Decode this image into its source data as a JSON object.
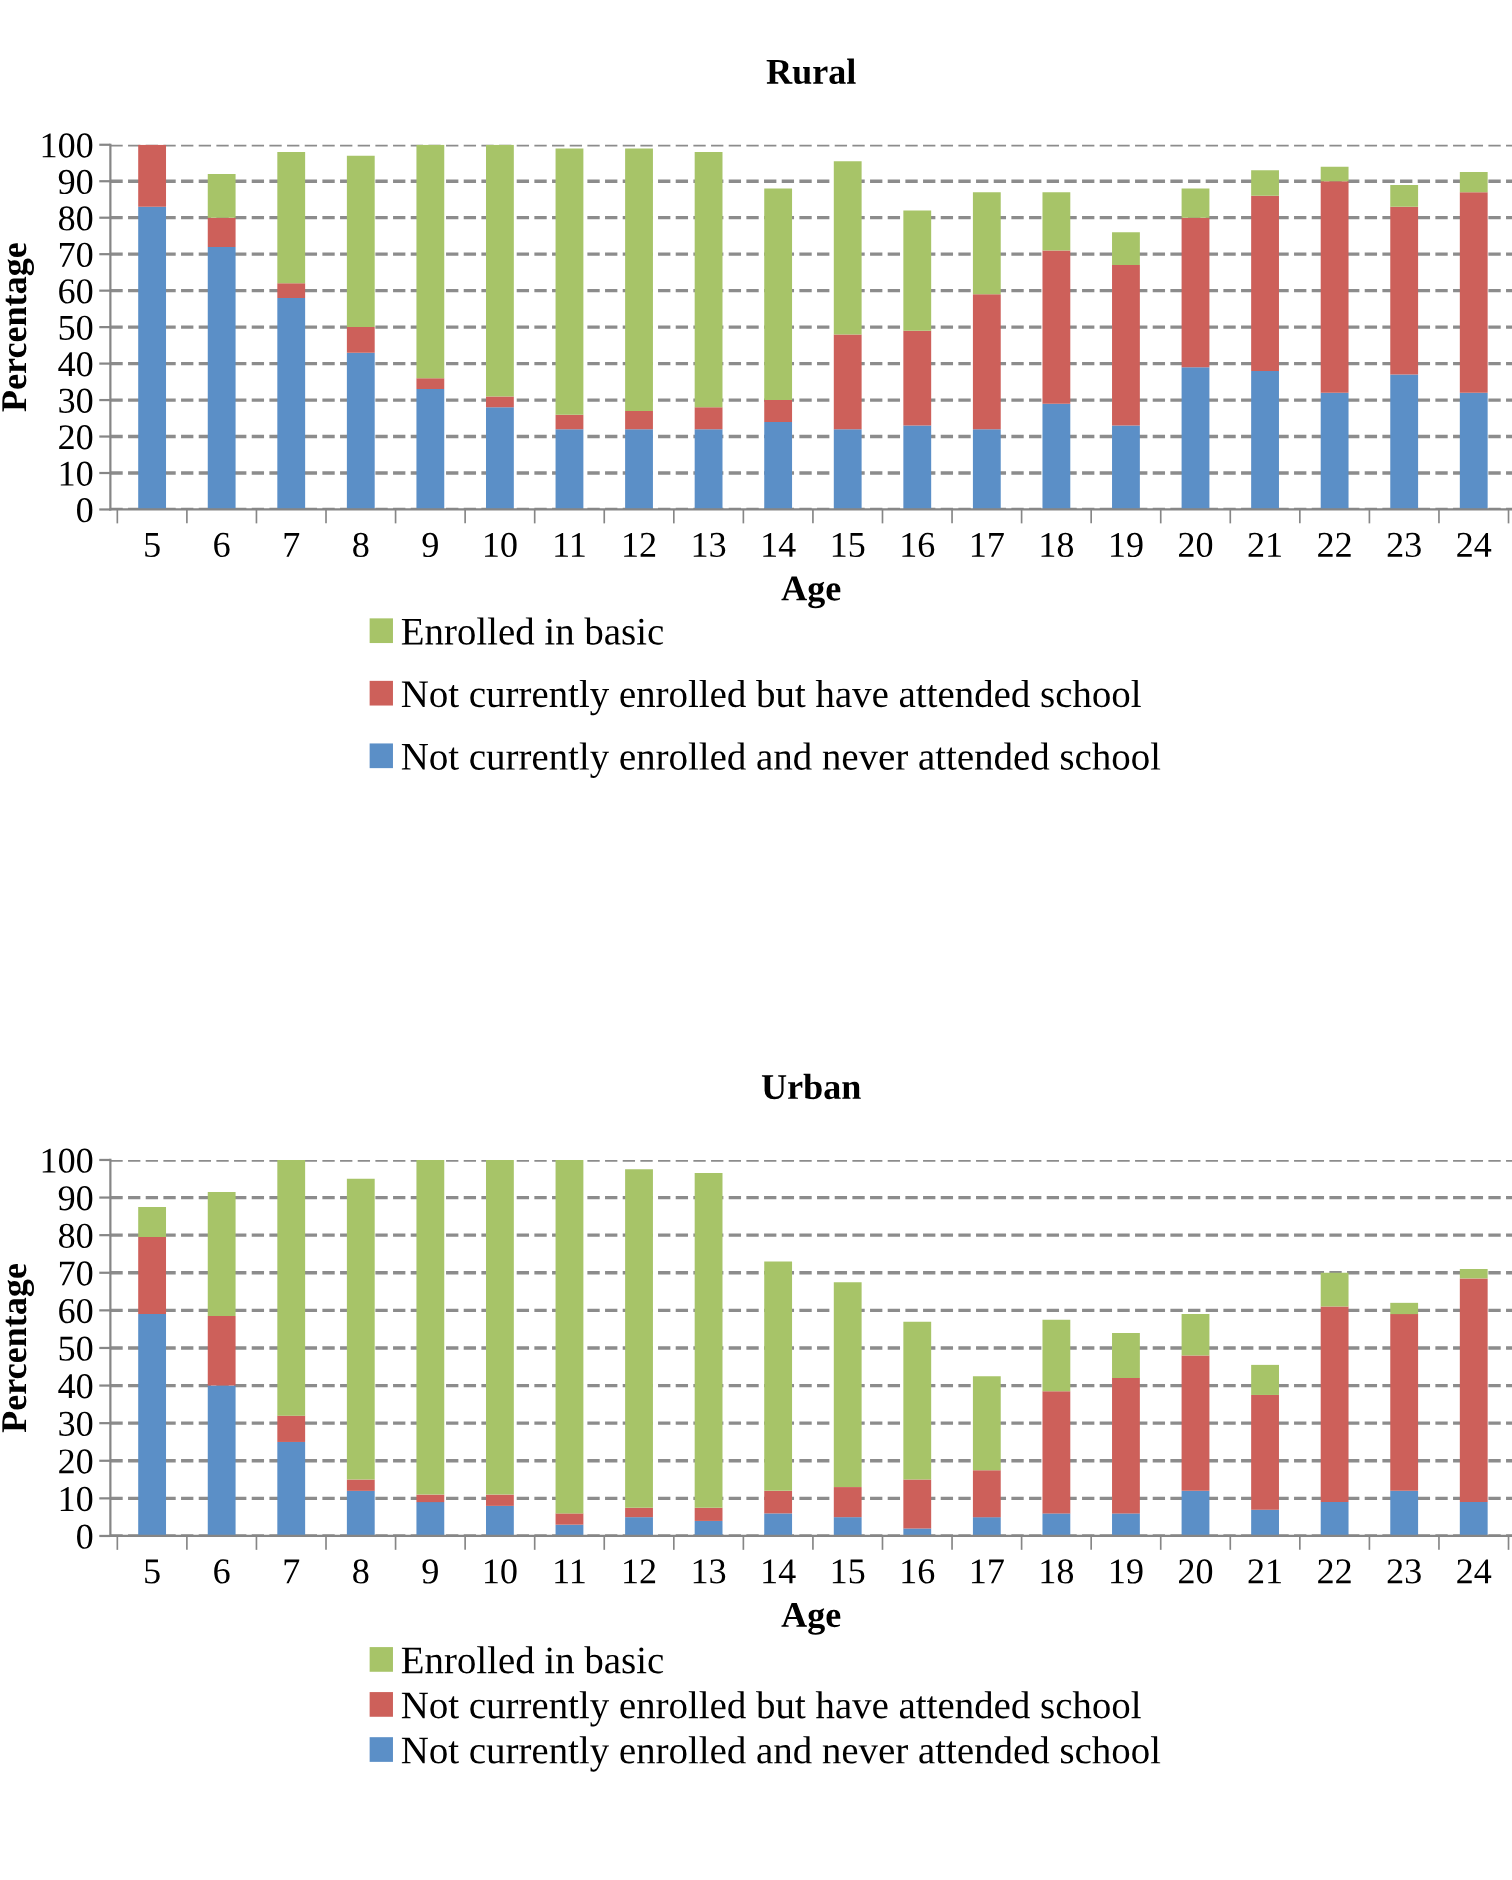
{
  "chart_data": [
    {
      "type": "bar",
      "stacked": true,
      "title": "Rural",
      "xlabel": "Age",
      "ylabel": "Percentage",
      "categories": [
        "5",
        "6",
        "7",
        "8",
        "9",
        "10",
        "11",
        "12",
        "13",
        "14",
        "15",
        "16",
        "17",
        "18",
        "19",
        "20",
        "21",
        "22",
        "23",
        "24"
      ],
      "ylim": [
        0,
        100
      ],
      "yticks": [
        0,
        10,
        20,
        30,
        40,
        50,
        60,
        70,
        80,
        90,
        100
      ],
      "grid": "y",
      "legend": "bottom",
      "series": [
        {
          "name": "Not currently enrolled and never attended school",
          "color": "#5b8fc7",
          "values": [
            83,
            72,
            58,
            43,
            33,
            28,
            22,
            22,
            22,
            24,
            22,
            23,
            22,
            29,
            23,
            39,
            38,
            32,
            37,
            32
          ]
        },
        {
          "name": "Not currently enrolled but have attended school",
          "color": "#cd605a",
          "values": [
            17,
            8,
            4,
            7,
            3,
            3,
            4,
            5,
            6,
            6,
            26,
            26,
            37,
            42,
            44,
            41,
            48,
            58,
            46,
            55
          ]
        },
        {
          "name": "Enrolled in basic",
          "color": "#a7c468",
          "values": [
            0,
            12,
            36,
            47,
            64,
            69,
            73,
            72,
            70,
            58,
            47.5,
            33,
            28,
            16,
            9,
            8,
            7,
            4,
            6,
            5.5
          ]
        }
      ]
    },
    {
      "type": "bar",
      "stacked": true,
      "title": "Urban",
      "xlabel": "Age",
      "ylabel": "Percentage",
      "categories": [
        "5",
        "6",
        "7",
        "8",
        "9",
        "10",
        "11",
        "12",
        "13",
        "14",
        "15",
        "16",
        "17",
        "18",
        "19",
        "20",
        "21",
        "22",
        "23",
        "24"
      ],
      "ylim": [
        0,
        100
      ],
      "yticks": [
        0,
        10,
        20,
        30,
        40,
        50,
        60,
        70,
        80,
        90,
        100
      ],
      "grid": "y",
      "legend": "bottom",
      "series": [
        {
          "name": "Not currently enrolled and never attended school",
          "color": "#5b8fc7",
          "values": [
            59,
            40,
            25,
            12,
            9,
            8,
            3,
            5,
            4,
            6,
            5,
            2,
            5,
            6,
            6,
            12,
            7,
            9,
            12,
            9
          ]
        },
        {
          "name": "Not currently enrolled but have attended school",
          "color": "#cd605a",
          "values": [
            20.5,
            18.5,
            7,
            3,
            2,
            3,
            3,
            2.5,
            3.5,
            6,
            8,
            13,
            12.5,
            32.5,
            36,
            36,
            30.5,
            52,
            47,
            59.5
          ]
        },
        {
          "name": "Enrolled in basic",
          "color": "#a7c468",
          "values": [
            8,
            33,
            68,
            80,
            89,
            89,
            94,
            90,
            89,
            61,
            54.5,
            42,
            25,
            19,
            12,
            11,
            8,
            9,
            3,
            2.5
          ]
        }
      ]
    }
  ]
}
